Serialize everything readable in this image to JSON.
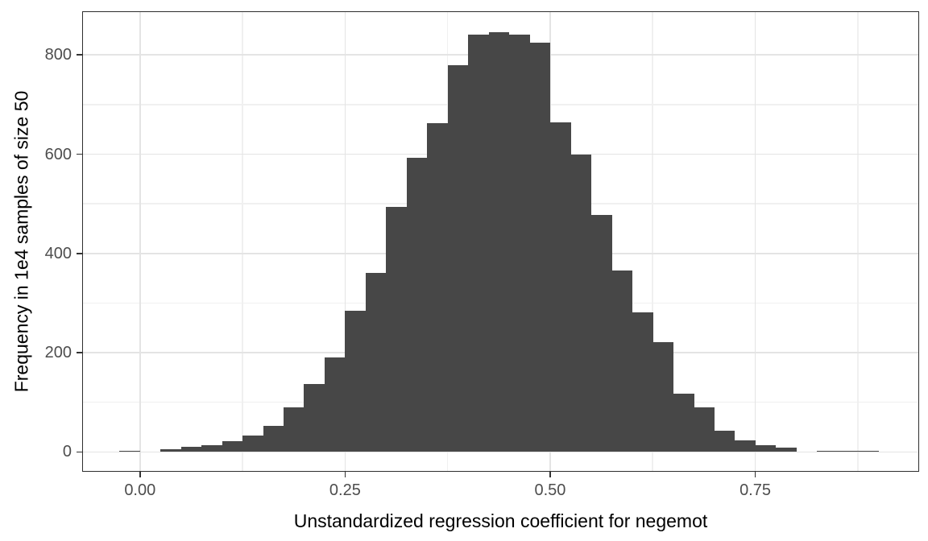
{
  "chart_data": {
    "type": "bar",
    "subtype": "histogram",
    "title": "",
    "xlabel": "Unstandardized regression coefficient for negemot",
    "ylabel": "Frequency in 1e4 samples of size 50",
    "bin_width": 0.025,
    "bin_left_edges": [
      -0.025,
      0.0,
      0.025,
      0.05,
      0.075,
      0.1,
      0.125,
      0.15,
      0.175,
      0.2,
      0.225,
      0.25,
      0.275,
      0.3,
      0.325,
      0.35,
      0.375,
      0.4,
      0.425,
      0.45,
      0.475,
      0.5,
      0.525,
      0.55,
      0.575,
      0.6,
      0.625,
      0.65,
      0.675,
      0.7,
      0.725,
      0.75,
      0.775,
      0.8,
      0.825,
      0.85,
      0.875
    ],
    "counts": [
      2,
      0,
      5,
      11,
      14,
      21,
      33,
      52,
      90,
      137,
      191,
      285,
      360,
      493,
      593,
      663,
      780,
      841,
      846,
      841,
      824,
      664,
      600,
      478,
      365,
      281,
      222,
      118,
      89,
      43,
      24,
      13,
      8,
      0,
      2,
      2,
      2
    ],
    "x_ticks": [
      0,
      0.25,
      0.5,
      0.75
    ],
    "x_tick_labels": [
      "0.00",
      "0.25",
      "0.50",
      "0.75"
    ],
    "x_minor_gridlines": [
      0.125,
      0.375,
      0.625,
      0.875
    ],
    "y_ticks": [
      0,
      200,
      400,
      600,
      800
    ],
    "y_tick_labels": [
      "0",
      "200",
      "400",
      "600",
      "800"
    ],
    "y_minor_gridlines": [
      100,
      300,
      500,
      700
    ],
    "x_domain": [
      -0.0705,
      0.9498
    ],
    "y_domain": [
      -40,
      888
    ],
    "grid": true,
    "legend": "none",
    "colors": {
      "bar_fill": "#474747",
      "grid_major": "#e4e4e4",
      "grid_minor": "#f0f0f0",
      "panel_border": "#2e2e2e",
      "tick_mark": "#333333",
      "tick_label": "#4d4d4d",
      "axis_title": "#000000",
      "plot_background": "#ffffff"
    }
  }
}
